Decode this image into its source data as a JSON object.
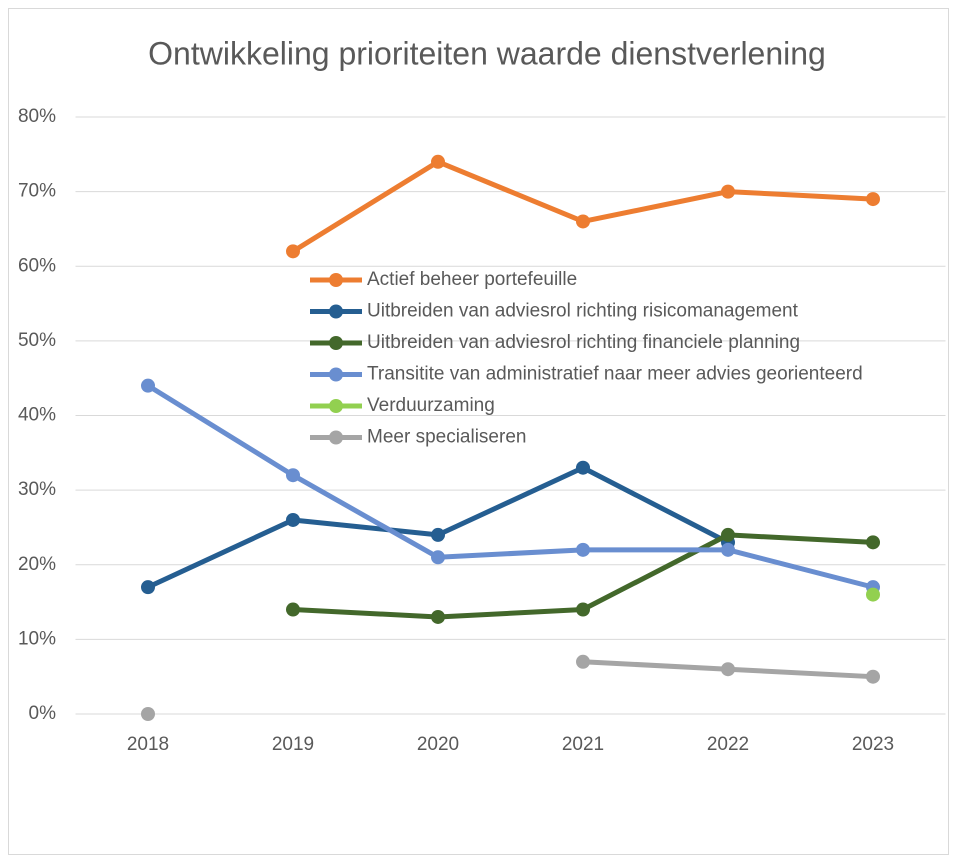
{
  "chart_data": {
    "type": "line",
    "title": "Ontwikkeling prioriteiten waarde dienstverlening",
    "categories": [
      "2018",
      "2019",
      "2020",
      "2021",
      "2022",
      "2023"
    ],
    "series": [
      {
        "name": "Actief beheer portefeuille",
        "color": "#ED7D31",
        "values": [
          null,
          62,
          74,
          66,
          70,
          69
        ]
      },
      {
        "name": "Uitbreiden van adviesrol richting risicomanagement",
        "color": "#255E91",
        "values": [
          17,
          26,
          24,
          33,
          23,
          null
        ]
      },
      {
        "name": "Uitbreiden van adviesrol richting financiele planning",
        "color": "#43682B",
        "values": [
          null,
          14,
          13,
          14,
          24,
          23
        ]
      },
      {
        "name": "Transitite van administratief naar meer advies georienteerd",
        "color": "#698ED0",
        "values": [
          44,
          32,
          21,
          22,
          22,
          17
        ]
      },
      {
        "name": "Verduurzaming",
        "color": "#92D050",
        "values": [
          null,
          null,
          null,
          null,
          null,
          16
        ]
      },
      {
        "name": "Meer specialiseren",
        "color": "#A5A5A5",
        "values": [
          0,
          null,
          null,
          7,
          6,
          5
        ]
      }
    ],
    "ylim": [
      0,
      80
    ],
    "yticks": [
      {
        "value": 0,
        "label": "0%"
      },
      {
        "value": 10,
        "label": "10%"
      },
      {
        "value": 20,
        "label": "20%"
      },
      {
        "value": 30,
        "label": "30%"
      },
      {
        "value": 40,
        "label": "40%"
      },
      {
        "value": 50,
        "label": "50%"
      },
      {
        "value": 60,
        "label": "60%"
      },
      {
        "value": 70,
        "label": "70%"
      },
      {
        "value": 80,
        "label": "80%"
      }
    ],
    "grid": true
  }
}
